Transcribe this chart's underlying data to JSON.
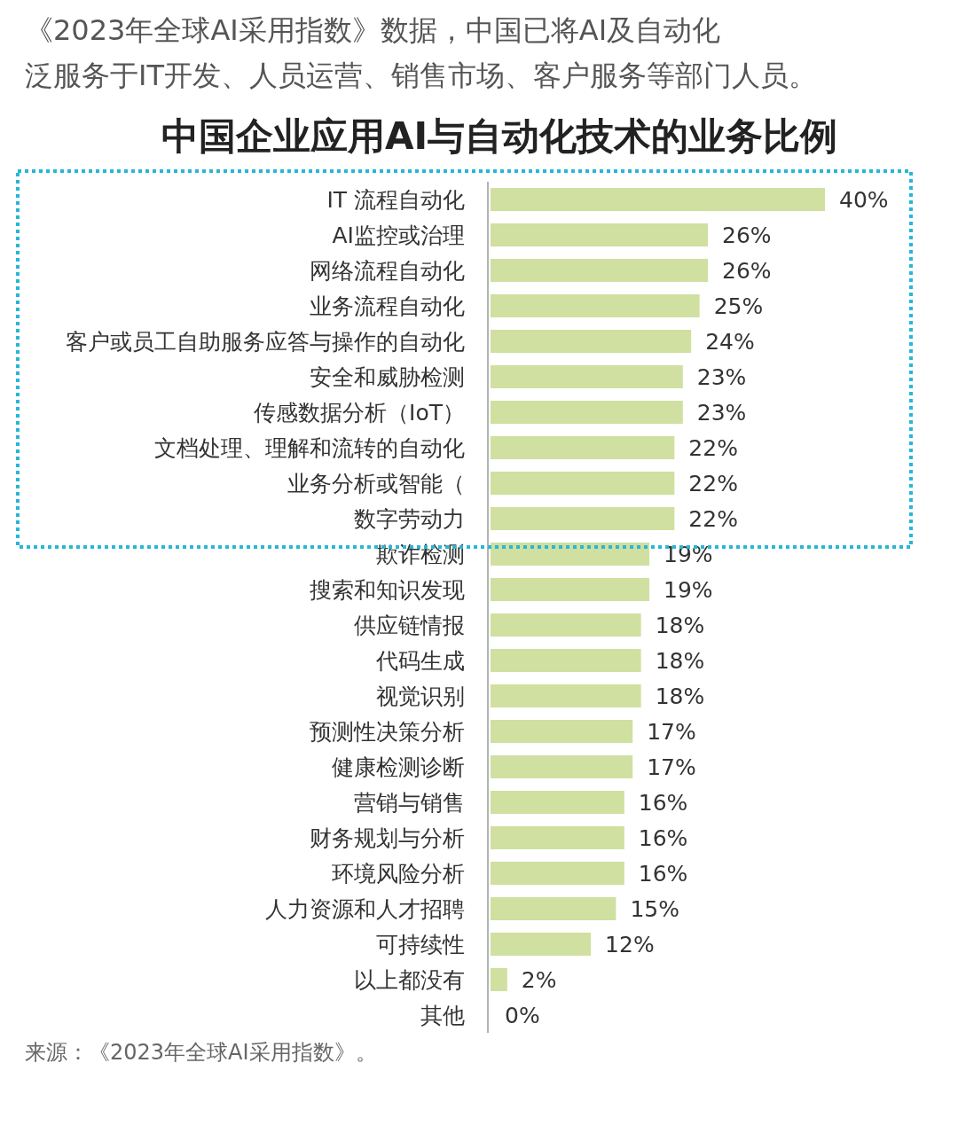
{
  "chart_data": {
    "type": "bar",
    "orientation": "horizontal",
    "title": "中国企业应用AI与自动化技术的业务比例",
    "annotations": [
      "《2023年全球AI采用指数》数据，中国已将AI及自动化",
      "泛服务于IT开发、人员运营、销售市场、客户服务等部门人员。",
      "来源：《2023年全球AI采用指数》。"
    ],
    "categories": [
      "IT 流程自动化",
      "AI监控或治理",
      "网络流程自动化",
      "业务流程自动化",
      "客户或员工自助服务应答与操作的自动化",
      "安全和威胁检测",
      "传感数据分析（IoT）",
      "文档处理、理解和流转的自动化",
      "业务分析或智能（",
      "数字劳动力",
      "欺诈检测",
      "搜索和知识发现",
      "供应链情报",
      "代码生成",
      "视觉识别",
      "预测性决策分析",
      "健康检测诊断",
      "营销与销售",
      "财务规划与分析",
      "环境风险分析",
      "人力资源和人才招聘",
      "可持续性",
      "以上都没有",
      "其他"
    ],
    "values": [
      40,
      26,
      26,
      25,
      24,
      23,
      23,
      22,
      22,
      22,
      19,
      19,
      18,
      18,
      18,
      17,
      17,
      16,
      16,
      16,
      15,
      12,
      2,
      0
    ],
    "value_labels": [
      "40%",
      "26%",
      "26%",
      "25%",
      "24%",
      "23%",
      "23%",
      "22%",
      "22%",
      "22%",
      "19%",
      "19%",
      "18%",
      "18%",
      "18%",
      "17%",
      "17%",
      "16%",
      "16%",
      "16%",
      "15%",
      "12%",
      "2%",
      "0%"
    ],
    "color": "#cfe0a0"
  }
}
